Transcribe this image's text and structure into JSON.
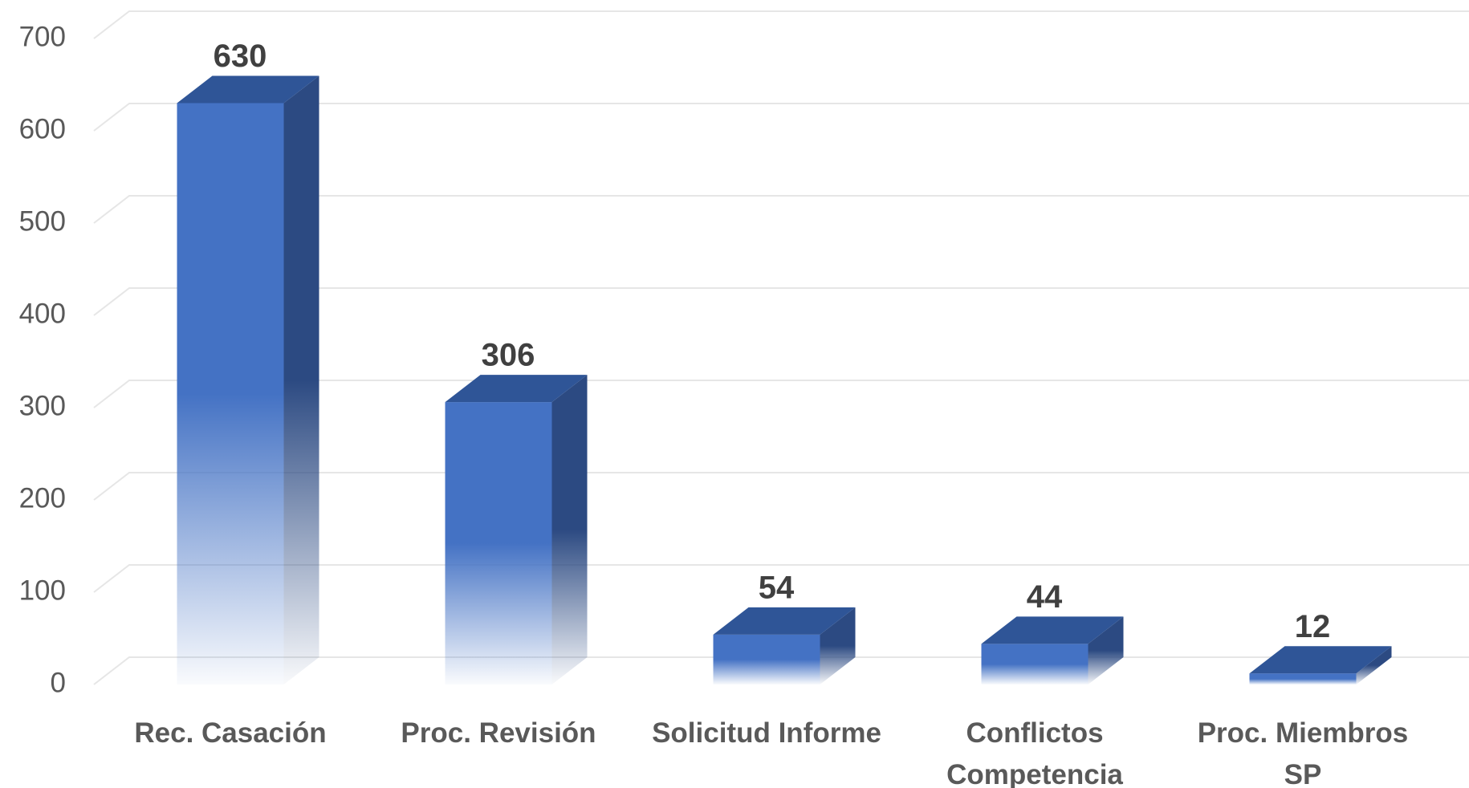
{
  "chart_data": {
    "type": "bar3d",
    "categories": [
      "Rec. Casación",
      "Proc. Revisión",
      "Solicitud Informe",
      "Conflictos\nCompetencia",
      "Proc. Miembros\nSP"
    ],
    "values": [
      630,
      306,
      54,
      44,
      12
    ],
    "color": "#4472c4",
    "ylim": [
      0,
      700
    ],
    "yticks": [
      0,
      100,
      200,
      300,
      400,
      500,
      600,
      700
    ],
    "grid": true
  }
}
